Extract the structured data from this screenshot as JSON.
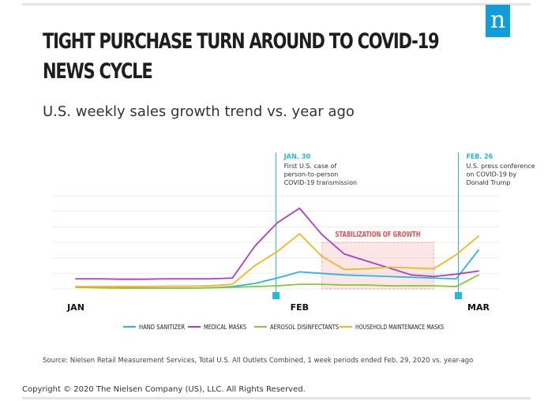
{
  "header": {
    "title": "TIGHT PURCHASE TURN AROUND TO COVID-19 NEWS CYCLE",
    "subtitle": "U.S. weekly sales growth trend vs. year ago",
    "logo_text": "n",
    "logo_color": "#0d9edb"
  },
  "chart_data": {
    "type": "line",
    "x": [
      1,
      2,
      3,
      4,
      5,
      6,
      7,
      8,
      9,
      10,
      11,
      12,
      13,
      14,
      15,
      16,
      17,
      18,
      19
    ],
    "xtick_labels": [
      {
        "label": "JAN",
        "x": 1
      },
      {
        "label": "FEB",
        "x": 11
      },
      {
        "label": "MAR",
        "x": 19
      }
    ],
    "ylim": [
      0,
      12
    ],
    "grid": true,
    "legend_position": "bottom",
    "series": [
      {
        "name": "HAND SANITIZER",
        "color": "#29b6e0",
        "values": [
          0.3,
          0.2,
          0.15,
          0.1,
          0.1,
          0.1,
          0.15,
          0.3,
          0.7,
          1.4,
          2.2,
          2.0,
          1.8,
          1.7,
          1.6,
          1.5,
          1.4,
          1.3,
          5.0
        ]
      },
      {
        "name": "MEDICAL MASKS",
        "color": "#ad3fbf",
        "values": [
          1.3,
          1.3,
          1.25,
          1.25,
          1.3,
          1.3,
          1.3,
          1.4,
          5.5,
          8.5,
          10.4,
          7.0,
          4.5,
          3.6,
          2.7,
          1.8,
          1.6,
          1.9,
          2.3
        ]
      },
      {
        "name": "AEROSOL DISINFECTANTS",
        "color": "#8dc63f",
        "values": [
          0.2,
          0.15,
          0.1,
          0.1,
          0.1,
          0.1,
          0.15,
          0.2,
          0.3,
          0.4,
          0.6,
          0.6,
          0.5,
          0.5,
          0.4,
          0.4,
          0.4,
          0.3,
          1.8
        ]
      },
      {
        "name": "HOUSEHOLD MAINTENANCE MASKS",
        "color": "#f2b820",
        "values": [
          0.3,
          0.3,
          0.3,
          0.3,
          0.35,
          0.35,
          0.4,
          0.6,
          3.0,
          4.8,
          7.1,
          4.2,
          2.5,
          2.6,
          2.8,
          2.7,
          2.6,
          4.4,
          6.8
        ]
      }
    ],
    "annotations": [
      {
        "label": "JAN. 30",
        "text": "First U.S. case of\nperson-to-person\nCOVID-19 transmission",
        "x": 9.95,
        "color": "#29b6e0"
      },
      {
        "label": "FEB. 26",
        "text": "U.S. press conference\non COVID-19 by\nDonald Trump",
        "x": 18.1,
        "color": "#29b6e0"
      }
    ],
    "shaded_region": {
      "label": "STABILIZATION OF GROWTH",
      "x_start": 12,
      "x_end": 17,
      "y_start": 0,
      "y_end": 6.0,
      "color": "#e84e4e"
    }
  },
  "footer": {
    "source": "Source: Nielsen Retail Measurement Services, Total U.S. All Outlets Combined, 1 week periods ended Feb. 29, 2020 vs. year-ago",
    "copyright": "Copyright © 2020 The Nielsen Company (US), LLC. All Rights Reserved."
  }
}
